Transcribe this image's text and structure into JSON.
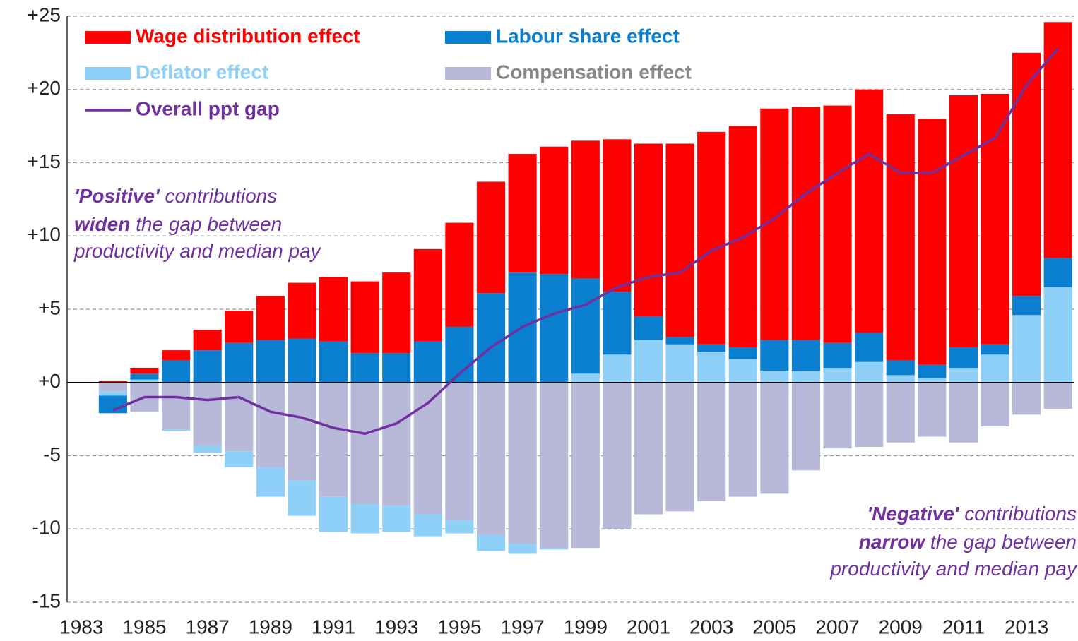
{
  "chart_data": {
    "type": "bar",
    "stacked": true,
    "categories": [
      "1983",
      null,
      "1985",
      null,
      "1987",
      null,
      "1989",
      null,
      "1991",
      null,
      "1993",
      null,
      "1995",
      null,
      "1997",
      null,
      "1999",
      null,
      "2001",
      null,
      "2003",
      null,
      "2005",
      null,
      "2007",
      null,
      "2009",
      null,
      "2011",
      null,
      "2013",
      null
    ],
    "series": [
      {
        "name": "Wage distribution effect",
        "color": "#ff0000",
        "values": [
          null,
          0.1,
          0.4,
          0.7,
          1.4,
          2.2,
          3.0,
          3.8,
          4.4,
          4.9,
          5.5,
          6.3,
          7.1,
          7.6,
          8.1,
          8.7,
          9.4,
          10.4,
          11.8,
          13.2,
          14.5,
          15.1,
          15.8,
          15.9,
          16.2,
          16.6,
          16.8,
          16.8,
          17.2,
          17.1,
          16.6,
          16.1
        ]
      },
      {
        "name": "Labour share effect",
        "color": "#0a7fd0",
        "values": [
          null,
          -1.2,
          0.4,
          1.5,
          2.2,
          2.7,
          2.9,
          3.0,
          2.8,
          2.0,
          2.0,
          2.8,
          3.8,
          6.1,
          7.5,
          7.4,
          6.5,
          4.3,
          1.6,
          0.5,
          0.5,
          0.8,
          2.1,
          2.1,
          1.7,
          2.0,
          1.0,
          0.9,
          1.4,
          0.7,
          1.3,
          2.0
        ]
      },
      {
        "name": "Deflator effect",
        "color": "#8fd0f8",
        "values": [
          null,
          -0.3,
          0.2,
          -0.1,
          -0.5,
          -1.1,
          -2.0,
          -2.4,
          -2.4,
          -2.0,
          -1.8,
          -1.5,
          -0.9,
          -1.1,
          -0.7,
          -0.1,
          0.6,
          1.9,
          2.9,
          2.6,
          2.1,
          1.6,
          0.8,
          0.8,
          1.0,
          1.4,
          0.5,
          0.3,
          1.0,
          1.9,
          4.6,
          6.5
        ]
      },
      {
        "name": "Compensation effect",
        "color": "#b8b8d8",
        "values": [
          null,
          -0.6,
          -2.0,
          -3.2,
          -4.3,
          -4.7,
          -5.8,
          -6.7,
          -7.8,
          -8.3,
          -8.4,
          -9.0,
          -9.4,
          -10.4,
          -11.0,
          -11.3,
          -11.3,
          -10.0,
          -9.0,
          -8.8,
          -8.1,
          -7.8,
          -7.6,
          -6.0,
          -4.5,
          -4.4,
          -4.1,
          -3.7,
          -4.1,
          -3.0,
          -2.2,
          -1.8
        ]
      },
      {
        "name": "Overall ppt gap",
        "color": "#7030a0",
        "type": "line",
        "values": [
          null,
          -1.9,
          -1.0,
          -1.0,
          -1.2,
          -1.0,
          -2.0,
          -2.4,
          -3.1,
          -3.5,
          -2.8,
          -1.4,
          0.6,
          2.4,
          3.8,
          4.7,
          5.3,
          6.5,
          7.2,
          7.5,
          9.0,
          9.9,
          11.2,
          12.9,
          14.3,
          15.6,
          14.3,
          14.3,
          15.5,
          16.7,
          20.3,
          22.8
        ]
      }
    ],
    "ylim": [
      -15,
      25
    ],
    "yticks": [
      -15,
      -10,
      -5,
      {
        "value": 0,
        "label": "+0"
      },
      {
        "value": 5,
        "label": "+5"
      },
      {
        "value": 10,
        "label": "+10"
      },
      {
        "value": 15,
        "label": "+15"
      },
      {
        "value": 20,
        "label": "+20"
      },
      {
        "value": 25,
        "label": "+25"
      }
    ],
    "grid": true,
    "annotations": [
      {
        "lines": [
          {
            "bold": "'Positive'",
            "text": " contributions"
          },
          {
            "bold": "widen",
            "text": " the gap between"
          },
          {
            "text": "productivity and median pay"
          }
        ]
      },
      {
        "lines": [
          {
            "bold": "'Negative'",
            "text": " contributions"
          },
          {
            "bold": "narrow",
            "text": " the gap between"
          },
          {
            "text": "productivity and median pay"
          }
        ]
      }
    ]
  }
}
